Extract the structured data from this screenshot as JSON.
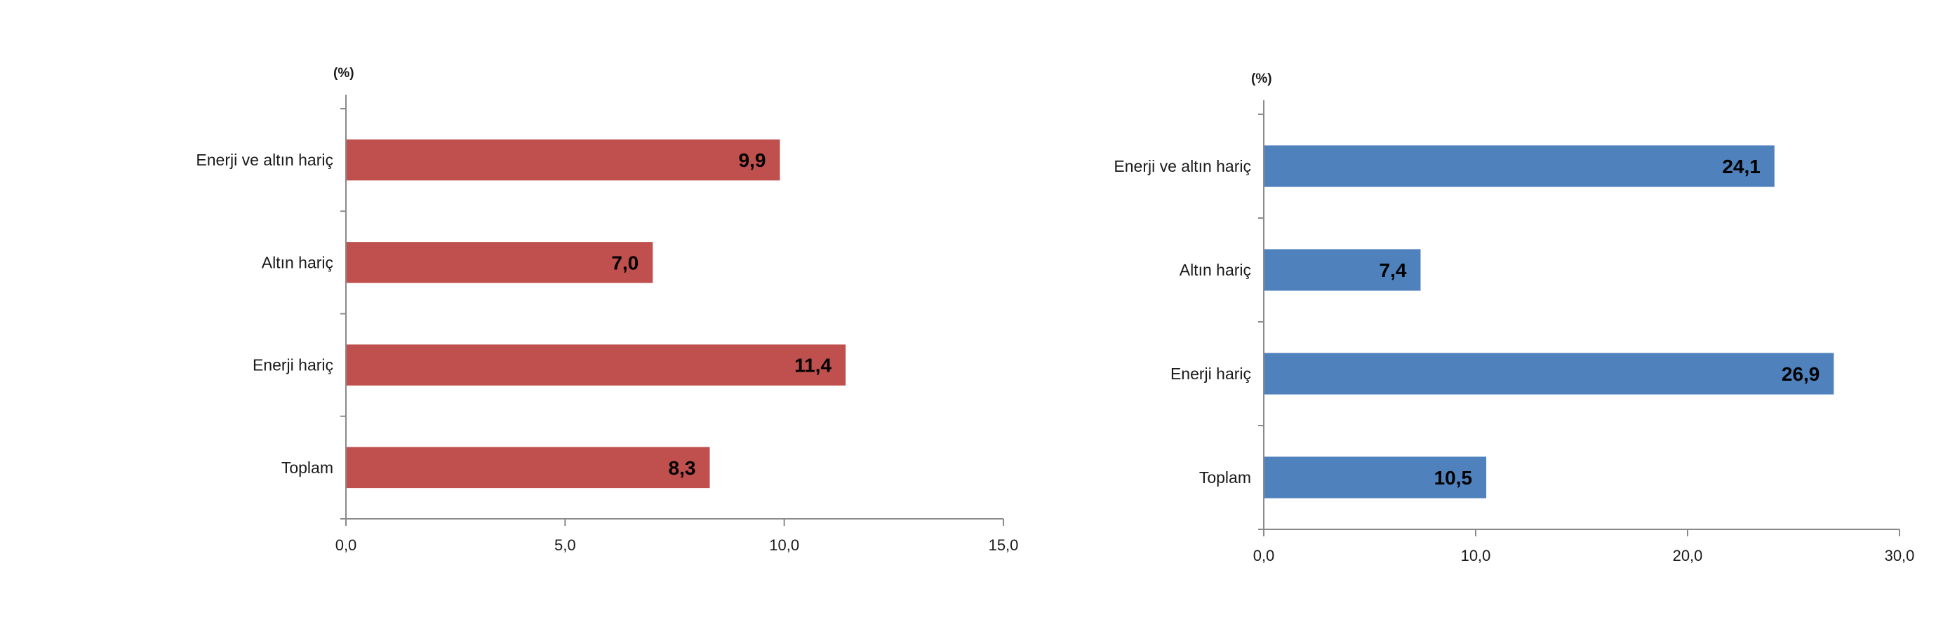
{
  "chart_data": [
    {
      "type": "bar",
      "orientation": "horizontal",
      "unit_label": "(%)",
      "categories": [
        "Enerji ve altın hariç",
        "Altın hariç",
        "Enerji hariç",
        "Toplam"
      ],
      "values": [
        9.9,
        7.0,
        11.4,
        8.3
      ],
      "value_labels": [
        "9,9",
        "7,0",
        "11,4",
        "8,3"
      ],
      "xlim": [
        0,
        15
      ],
      "xticks": [
        0,
        5,
        10,
        15
      ],
      "xtick_labels": [
        "0,0",
        "5,0",
        "10,0",
        "15,0"
      ],
      "bar_color": "#c0504d",
      "grid": false,
      "legend": "none"
    },
    {
      "type": "bar",
      "orientation": "horizontal",
      "unit_label": "(%)",
      "categories": [
        "Enerji ve altın hariç",
        "Altın hariç",
        "Enerji hariç",
        "Toplam"
      ],
      "values": [
        24.1,
        7.4,
        26.9,
        10.5
      ],
      "value_labels": [
        "24,1",
        "7,4",
        "26,9",
        "10,5"
      ],
      "xlim": [
        0,
        30
      ],
      "xticks": [
        0,
        10,
        20,
        30
      ],
      "xtick_labels": [
        "0,0",
        "10,0",
        "20,0",
        "30,0"
      ],
      "bar_color": "#4f81bd",
      "grid": false,
      "legend": "none"
    }
  ]
}
